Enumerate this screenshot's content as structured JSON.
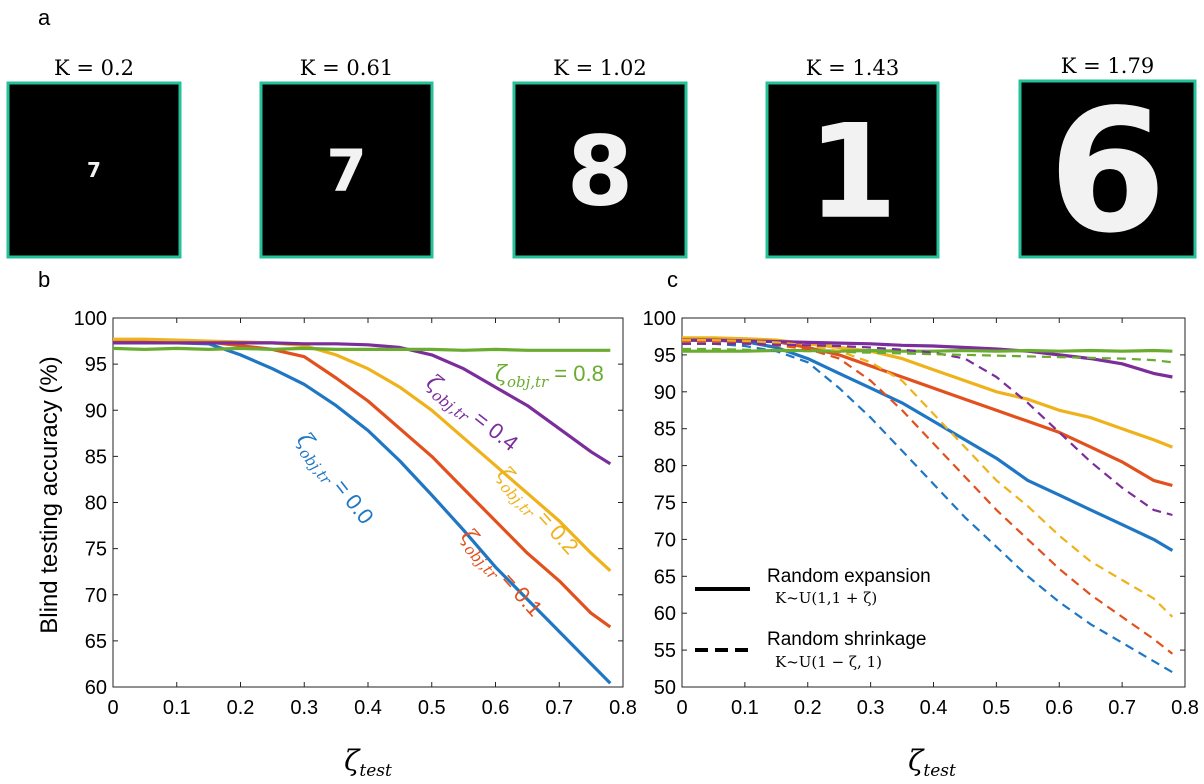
{
  "panel_labels": {
    "a": "a",
    "b": "b",
    "c": "c"
  },
  "digits": [
    {
      "label": "K = 0.2",
      "digit": "7"
    },
    {
      "label": "K = 0.61",
      "digit": "7"
    },
    {
      "label": "K = 1.02",
      "digit": "8"
    },
    {
      "label": "K = 1.43",
      "digit": "1"
    },
    {
      "label": "K = 1.79",
      "digit": "6"
    }
  ],
  "colors": {
    "blue": "#1f77c4",
    "red": "#e2501d",
    "orange": "#efb21b",
    "purple": "#7b2d9b",
    "green": "#6aac2f",
    "frame": "#25c29a"
  },
  "x_title": {
    "main": "ζ",
    "sub": "test"
  },
  "chart_data": [
    {
      "type": "line",
      "ylabel": "Blind testing accuracy (%)",
      "xlim": [
        0,
        0.8
      ],
      "ylim": [
        60,
        100
      ],
      "xticks": [
        "0",
        "0.1",
        "0.2",
        "0.3",
        "0.4",
        "0.5",
        "0.6",
        "0.7",
        "0.8"
      ],
      "yticks": [
        "60",
        "65",
        "70",
        "75",
        "80",
        "85",
        "90",
        "95",
        "100"
      ],
      "grid": false,
      "x": [
        0,
        0.05,
        0.1,
        0.15,
        0.2,
        0.25,
        0.3,
        0.35,
        0.4,
        0.45,
        0.5,
        0.55,
        0.6,
        0.65,
        0.7,
        0.75,
        0.78
      ],
      "series": [
        {
          "name": "ζobj,tr = 0.0",
          "label_main": "ζ",
          "label_sub": "obj,tr",
          "label_rest": " = 0.0",
          "color": "blue",
          "values": [
            97.5,
            97.5,
            97.3,
            97.2,
            96.0,
            94.5,
            92.8,
            90.5,
            87.8,
            84.5,
            80.8,
            77.0,
            73.0,
            69.5,
            66.0,
            62.5,
            60.4
          ]
        },
        {
          "name": "ζobj,tr = 0.1",
          "label_main": "ζ",
          "label_sub": "obj,tr",
          "label_rest": " = 0.1",
          "color": "red",
          "values": [
            97.6,
            97.6,
            97.5,
            97.4,
            97.0,
            96.6,
            95.8,
            93.5,
            91.0,
            88.0,
            85.0,
            81.5,
            78.0,
            74.5,
            71.5,
            68.0,
            66.5
          ]
        },
        {
          "name": "ζobj,tr = 0.2",
          "label_main": "ζ",
          "label_sub": "obj,tr",
          "label_rest": " = 0.2",
          "color": "orange",
          "values": [
            97.7,
            97.7,
            97.6,
            97.5,
            97.4,
            97.3,
            97.0,
            96.0,
            94.5,
            92.5,
            90.0,
            87.0,
            84.0,
            81.0,
            78.0,
            74.5,
            72.6
          ]
        },
        {
          "name": "ζobj,tr = 0.4",
          "label_main": "ζ",
          "label_sub": "obj,tr",
          "label_rest": " = 0.4",
          "color": "purple",
          "values": [
            97.3,
            97.3,
            97.3,
            97.3,
            97.3,
            97.3,
            97.2,
            97.2,
            97.1,
            96.8,
            96.0,
            94.5,
            92.5,
            90.5,
            88.0,
            85.5,
            84.2
          ]
        },
        {
          "name": "ζobj,tr = 0.8",
          "label_main": "ζ",
          "label_sub": "obj,tr",
          "label_rest": " = 0.8",
          "color": "green",
          "values": [
            96.7,
            96.6,
            96.7,
            96.6,
            96.7,
            96.6,
            96.7,
            96.6,
            96.6,
            96.6,
            96.6,
            96.5,
            96.6,
            96.5,
            96.5,
            96.5,
            96.5
          ]
        }
      ]
    },
    {
      "type": "line",
      "xlim": [
        0,
        0.8
      ],
      "ylim": [
        50,
        100
      ],
      "xticks": [
        "0",
        "0.1",
        "0.2",
        "0.3",
        "0.4",
        "0.5",
        "0.6",
        "0.7",
        "0.8"
      ],
      "yticks": [
        "50",
        "55",
        "60",
        "65",
        "70",
        "75",
        "80",
        "85",
        "90",
        "95",
        "100"
      ],
      "grid": false,
      "x": [
        0,
        0.05,
        0.1,
        0.15,
        0.2,
        0.25,
        0.3,
        0.35,
        0.4,
        0.45,
        0.5,
        0.55,
        0.6,
        0.65,
        0.7,
        0.75,
        0.78
      ],
      "series": [
        {
          "color": "blue",
          "style": "solid",
          "values": [
            97.0,
            97.0,
            96.8,
            96.0,
            94.5,
            92.5,
            90.5,
            88.5,
            86.0,
            83.5,
            81.0,
            78.0,
            76.0,
            74.0,
            72.0,
            70.0,
            68.5
          ]
        },
        {
          "color": "red",
          "style": "solid",
          "values": [
            97.0,
            97.0,
            97.0,
            96.8,
            96.0,
            95.0,
            93.5,
            92.0,
            90.5,
            89.0,
            87.5,
            86.0,
            84.5,
            82.5,
            80.5,
            78.0,
            77.3
          ]
        },
        {
          "color": "orange",
          "style": "solid",
          "values": [
            97.3,
            97.3,
            97.2,
            97.0,
            96.5,
            96.0,
            95.5,
            94.5,
            93.0,
            91.5,
            90.0,
            89.0,
            87.5,
            86.5,
            85.0,
            83.5,
            82.5
          ]
        },
        {
          "color": "purple",
          "style": "solid",
          "values": [
            97.0,
            97.0,
            96.9,
            96.8,
            96.7,
            96.6,
            96.5,
            96.3,
            96.2,
            96.0,
            95.8,
            95.5,
            95.0,
            94.5,
            93.8,
            92.5,
            92.0
          ]
        },
        {
          "color": "green",
          "style": "solid",
          "values": [
            95.5,
            95.5,
            95.5,
            95.6,
            95.6,
            95.5,
            95.6,
            95.5,
            95.5,
            95.6,
            95.5,
            95.6,
            95.5,
            95.6,
            95.5,
            95.6,
            95.5
          ]
        },
        {
          "color": "blue",
          "style": "dashed",
          "values": [
            96.5,
            96.5,
            96.2,
            95.5,
            94.0,
            90.5,
            86.5,
            82.0,
            77.5,
            73.0,
            69.0,
            65.0,
            61.5,
            58.5,
            56.0,
            53.5,
            52.0
          ]
        },
        {
          "color": "red",
          "style": "dashed",
          "values": [
            96.8,
            96.8,
            96.6,
            96.3,
            95.8,
            94.5,
            91.5,
            87.5,
            83.0,
            78.5,
            74.0,
            70.0,
            66.0,
            62.5,
            59.5,
            56.5,
            54.5
          ]
        },
        {
          "color": "orange",
          "style": "dashed",
          "values": [
            97.0,
            97.0,
            96.9,
            96.7,
            96.3,
            95.5,
            94.0,
            91.5,
            87.0,
            82.5,
            78.0,
            74.5,
            70.5,
            67.0,
            64.5,
            62.0,
            59.5
          ]
        },
        {
          "color": "purple",
          "style": "dashed",
          "values": [
            96.5,
            96.5,
            96.5,
            96.4,
            96.3,
            96.2,
            96.0,
            95.7,
            95.3,
            94.5,
            92.0,
            88.5,
            84.5,
            80.5,
            77.0,
            74.0,
            73.3
          ]
        },
        {
          "color": "green",
          "style": "dashed",
          "values": [
            95.8,
            95.8,
            95.7,
            95.6,
            95.5,
            95.4,
            95.3,
            95.2,
            95.1,
            95.0,
            94.9,
            94.8,
            94.7,
            94.6,
            94.5,
            94.3,
            94.0
          ]
        }
      ],
      "legend": {
        "expansion_label": "Random expansion",
        "expansion_formula": "K~U(1,1 + ζ)",
        "shrinkage_label": "Random shrinkage",
        "shrinkage_formula": "K~U(1 − ζ, 1)"
      }
    }
  ]
}
